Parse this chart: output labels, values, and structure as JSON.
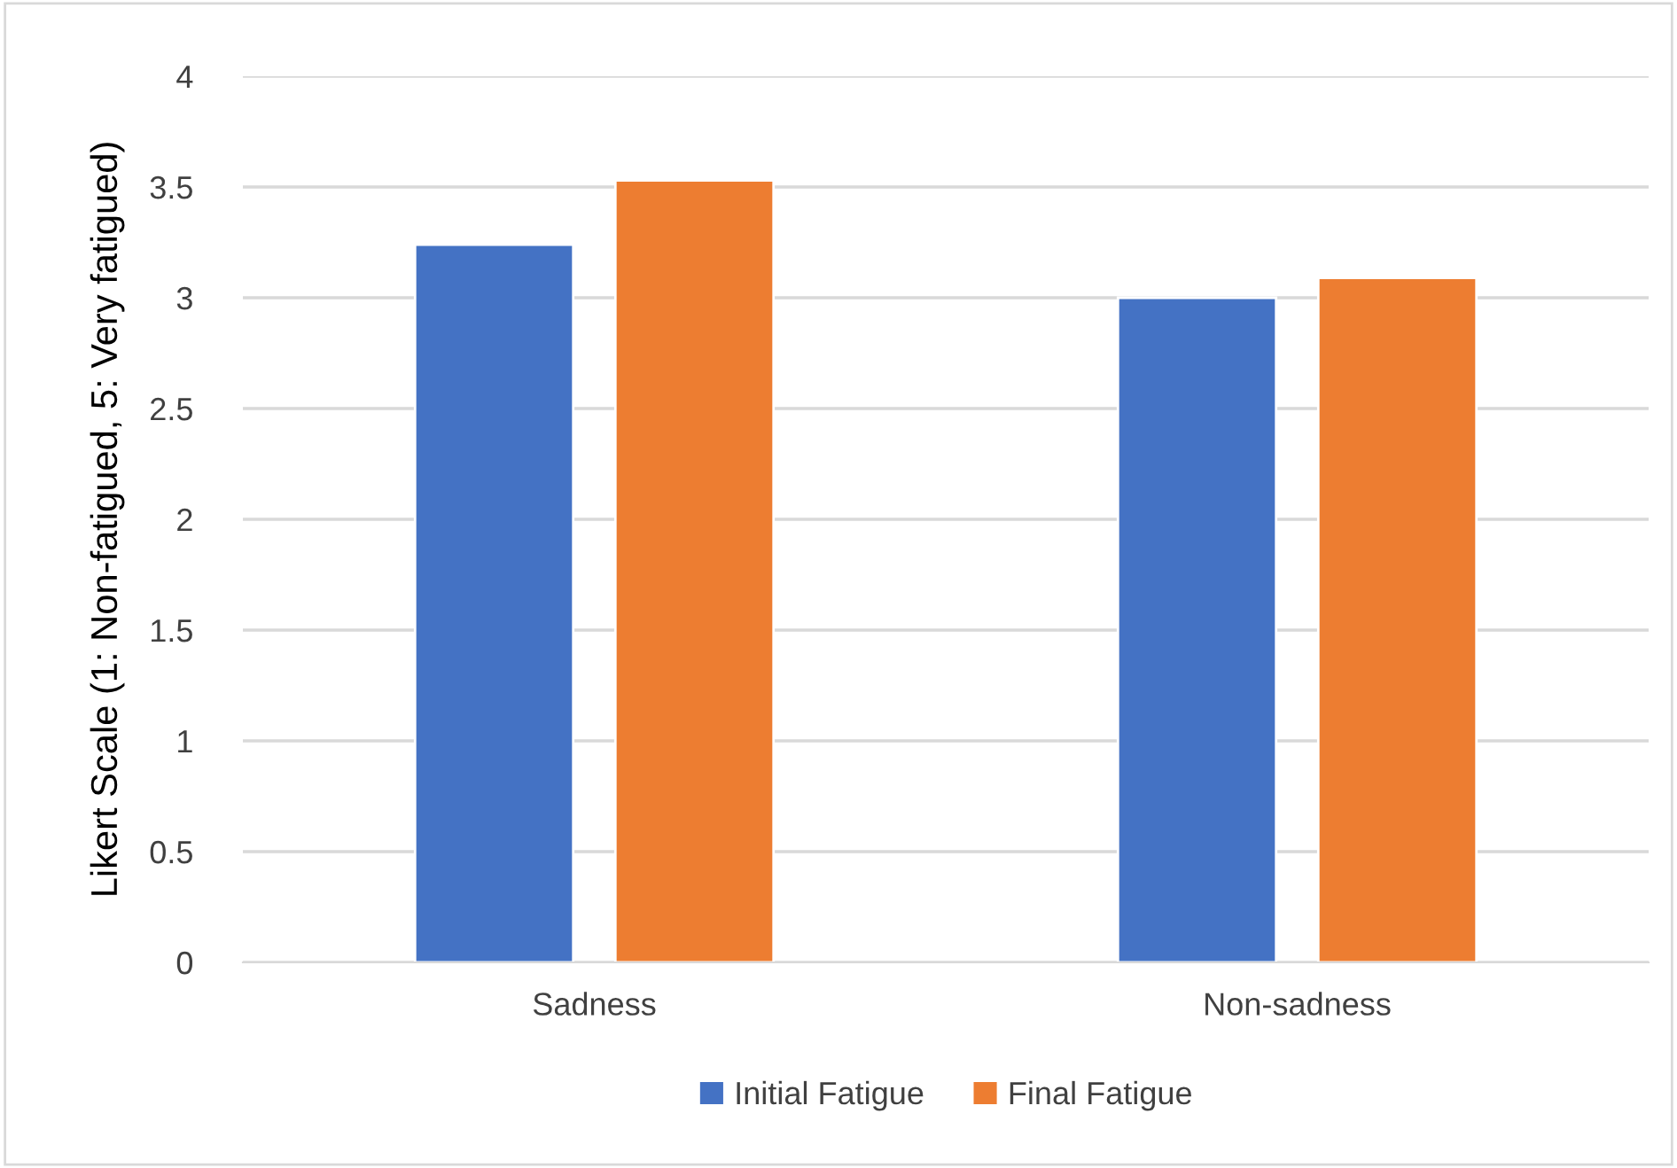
{
  "chart_data": {
    "type": "bar",
    "ylabel": "Likert Scale (1: Non-fatigued, 5: Very fatigued)",
    "categories": [
      "Sadness",
      "Non-sadness"
    ],
    "series": [
      {
        "name": "Initial Fatigue",
        "color": "#4472c4",
        "values": [
          3.24,
          3.0
        ]
      },
      {
        "name": "Final Fatigue",
        "color": "#ed7d31",
        "values": [
          3.53,
          3.09
        ]
      }
    ],
    "ylim": [
      0,
      4
    ],
    "yticks": [
      0,
      0.5,
      1,
      1.5,
      2,
      2.5,
      3,
      3.5,
      4
    ],
    "grid": "y",
    "legend": "bottom"
  }
}
